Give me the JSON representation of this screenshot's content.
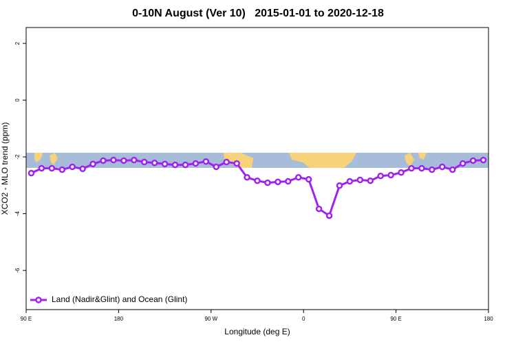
{
  "chart_data": {
    "type": "line",
    "title": "0-10N August (Ver 10)   2015-01-01 to 2020-12-18",
    "x_label": "Longitude (deg E)",
    "y_label": "XCO2 - MLO trend (ppm)",
    "x": [
      95,
      105,
      115,
      125,
      135,
      145,
      155,
      165,
      175,
      185,
      195,
      205,
      215,
      225,
      235,
      245,
      255,
      265,
      275,
      285,
      295,
      305,
      315,
      325,
      335,
      345,
      355,
      365,
      375,
      385,
      395,
      405,
      415,
      425,
      435,
      445,
      455,
      465,
      475,
      485,
      495,
      505,
      515,
      525,
      535
    ],
    "series": [
      {
        "name": "Land (Nadir&Glint) and Ocean (Glint)",
        "color": "#a020f0",
        "values": [
          -2.57,
          -2.4,
          -2.4,
          -2.45,
          -2.35,
          -2.42,
          -2.25,
          -2.13,
          -2.11,
          -2.13,
          -2.11,
          -2.18,
          -2.21,
          -2.25,
          -2.28,
          -2.28,
          -2.23,
          -2.16,
          -2.35,
          -2.18,
          -2.23,
          -2.72,
          -2.84,
          -2.91,
          -2.88,
          -2.86,
          -2.72,
          -2.79,
          -3.83,
          -4.07,
          -3.01,
          -2.86,
          -2.81,
          -2.84,
          -2.67,
          -2.64,
          -2.55,
          -2.4,
          -2.4,
          -2.45,
          -2.35,
          -2.45,
          -2.23,
          -2.13,
          -2.11
        ]
      }
    ],
    "xlim": [
      90,
      540
    ],
    "xticks": [
      {
        "value": 90,
        "label": "90 E"
      },
      180,
      {
        "value": 270,
        "label": "90 W"
      },
      {
        "value": 360,
        "label": "0"
      },
      {
        "value": 450,
        "label": "90 E"
      },
      {
        "value": 540,
        "label": "180"
      }
    ],
    "ylim": [
      -7.38,
      2.56
    ],
    "yticks": [
      -6,
      -4,
      -2,
      0,
      2
    ],
    "legend": "bottom-left"
  }
}
